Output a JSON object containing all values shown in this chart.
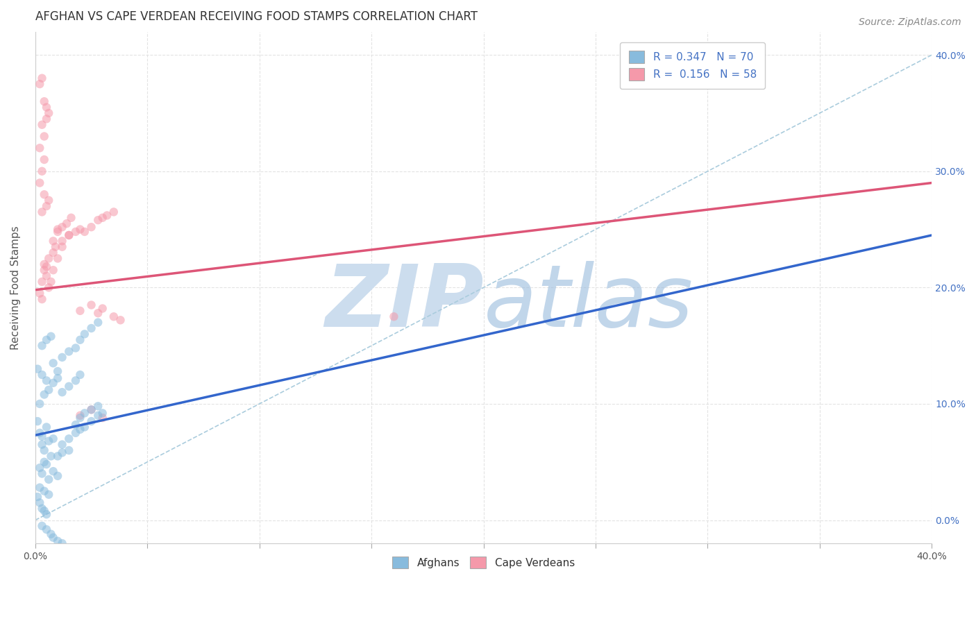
{
  "title": "AFGHAN VS CAPE VERDEAN RECEIVING FOOD STAMPS CORRELATION CHART",
  "source": "Source: ZipAtlas.com",
  "ylabel": "Receiving Food Stamps",
  "xlim": [
    0.0,
    0.4
  ],
  "ylim": [
    -0.02,
    0.42
  ],
  "R_afghan": 0.347,
  "N_afghan": 70,
  "R_cape": 0.156,
  "N_cape": 58,
  "afghan_color": "#88bbdd",
  "cape_color": "#f599aa",
  "afghan_line_color": "#3366cc",
  "cape_line_color": "#dd5577",
  "ref_line_color": "#aaccdd",
  "watermark_zip_color": "#ccddee",
  "watermark_atlas_color": "#99bbdd",
  "legend_label_afghan": "Afghans",
  "legend_label_cape": "Cape Verdeans",
  "afghan_dots": [
    [
      0.001,
      0.085
    ],
    [
      0.002,
      0.075
    ],
    [
      0.003,
      0.072
    ],
    [
      0.005,
      0.08
    ],
    [
      0.003,
      0.065
    ],
    [
      0.004,
      0.06
    ],
    [
      0.006,
      0.068
    ],
    [
      0.007,
      0.055
    ],
    [
      0.008,
      0.07
    ],
    [
      0.004,
      0.05
    ],
    [
      0.002,
      0.045
    ],
    [
      0.003,
      0.04
    ],
    [
      0.005,
      0.048
    ],
    [
      0.006,
      0.035
    ],
    [
      0.008,
      0.042
    ],
    [
      0.01,
      0.038
    ],
    [
      0.01,
      0.055
    ],
    [
      0.012,
      0.058
    ],
    [
      0.015,
      0.06
    ],
    [
      0.012,
      0.065
    ],
    [
      0.015,
      0.07
    ],
    [
      0.018,
      0.075
    ],
    [
      0.02,
      0.078
    ],
    [
      0.022,
      0.08
    ],
    [
      0.025,
      0.085
    ],
    [
      0.028,
      0.09
    ],
    [
      0.03,
      0.092
    ],
    [
      0.025,
      0.095
    ],
    [
      0.018,
      0.082
    ],
    [
      0.02,
      0.088
    ],
    [
      0.022,
      0.092
    ],
    [
      0.028,
      0.098
    ],
    [
      0.001,
      0.13
    ],
    [
      0.003,
      0.125
    ],
    [
      0.005,
      0.12
    ],
    [
      0.008,
      0.135
    ],
    [
      0.01,
      0.128
    ],
    [
      0.012,
      0.14
    ],
    [
      0.015,
      0.145
    ],
    [
      0.018,
      0.148
    ],
    [
      0.02,
      0.155
    ],
    [
      0.022,
      0.16
    ],
    [
      0.025,
      0.165
    ],
    [
      0.028,
      0.17
    ],
    [
      0.002,
      0.1
    ],
    [
      0.004,
      0.108
    ],
    [
      0.006,
      0.112
    ],
    [
      0.008,
      0.118
    ],
    [
      0.01,
      0.122
    ],
    [
      0.012,
      0.11
    ],
    [
      0.015,
      0.115
    ],
    [
      0.018,
      0.12
    ],
    [
      0.02,
      0.125
    ],
    [
      0.003,
      0.15
    ],
    [
      0.005,
      0.155
    ],
    [
      0.007,
      0.158
    ],
    [
      0.001,
      0.02
    ],
    [
      0.002,
      0.015
    ],
    [
      0.003,
      0.01
    ],
    [
      0.004,
      0.008
    ],
    [
      0.005,
      0.005
    ],
    [
      0.002,
      0.028
    ],
    [
      0.004,
      0.025
    ],
    [
      0.006,
      0.022
    ],
    [
      0.003,
      -0.005
    ],
    [
      0.005,
      -0.008
    ],
    [
      0.007,
      -0.012
    ],
    [
      0.008,
      -0.015
    ],
    [
      0.01,
      -0.018
    ],
    [
      0.012,
      -0.02
    ]
  ],
  "cape_dots": [
    [
      0.002,
      0.195
    ],
    [
      0.003,
      0.205
    ],
    [
      0.004,
      0.215
    ],
    [
      0.003,
      0.19
    ],
    [
      0.005,
      0.21
    ],
    [
      0.004,
      0.22
    ],
    [
      0.006,
      0.225
    ],
    [
      0.005,
      0.218
    ],
    [
      0.006,
      0.2
    ],
    [
      0.008,
      0.215
    ],
    [
      0.007,
      0.205
    ],
    [
      0.008,
      0.23
    ],
    [
      0.01,
      0.225
    ],
    [
      0.009,
      0.235
    ],
    [
      0.012,
      0.24
    ],
    [
      0.01,
      0.248
    ],
    [
      0.012,
      0.252
    ],
    [
      0.015,
      0.245
    ],
    [
      0.014,
      0.255
    ],
    [
      0.016,
      0.26
    ],
    [
      0.003,
      0.265
    ],
    [
      0.004,
      0.28
    ],
    [
      0.005,
      0.27
    ],
    [
      0.006,
      0.275
    ],
    [
      0.002,
      0.29
    ],
    [
      0.003,
      0.3
    ],
    [
      0.004,
      0.31
    ],
    [
      0.002,
      0.32
    ],
    [
      0.004,
      0.33
    ],
    [
      0.003,
      0.34
    ],
    [
      0.002,
      0.375
    ],
    [
      0.003,
      0.38
    ],
    [
      0.005,
      0.355
    ],
    [
      0.004,
      0.36
    ],
    [
      0.006,
      0.35
    ],
    [
      0.005,
      0.345
    ],
    [
      0.008,
      0.24
    ],
    [
      0.01,
      0.25
    ],
    [
      0.012,
      0.235
    ],
    [
      0.015,
      0.245
    ],
    [
      0.018,
      0.248
    ],
    [
      0.02,
      0.25
    ],
    [
      0.022,
      0.248
    ],
    [
      0.025,
      0.252
    ],
    [
      0.028,
      0.258
    ],
    [
      0.03,
      0.26
    ],
    [
      0.032,
      0.262
    ],
    [
      0.035,
      0.265
    ],
    [
      0.02,
      0.18
    ],
    [
      0.025,
      0.185
    ],
    [
      0.028,
      0.178
    ],
    [
      0.03,
      0.182
    ],
    [
      0.035,
      0.175
    ],
    [
      0.038,
      0.172
    ],
    [
      0.02,
      0.09
    ],
    [
      0.025,
      0.095
    ],
    [
      0.03,
      0.088
    ],
    [
      0.16,
      0.175
    ]
  ],
  "title_fontsize": 12,
  "axis_label_fontsize": 11,
  "tick_fontsize": 10,
  "legend_fontsize": 11,
  "source_fontsize": 10,
  "dot_size": 80,
  "dot_alpha": 0.55,
  "background_color": "#ffffff",
  "grid_color": "#dddddd",
  "afghan_line_x": [
    0.0,
    0.4
  ],
  "afghan_line_y": [
    0.073,
    0.245
  ],
  "cape_line_x": [
    0.0,
    0.4
  ],
  "cape_line_y": [
    0.198,
    0.29
  ]
}
